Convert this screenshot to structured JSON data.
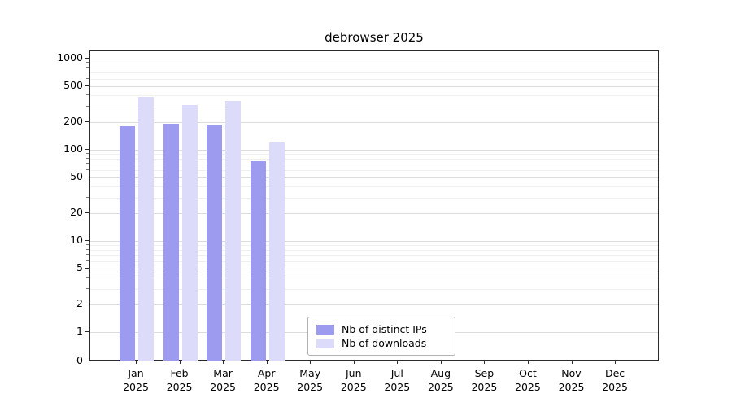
{
  "chart_data": {
    "type": "bar",
    "title": "debrowser 2025",
    "categories": [
      "Jan 2025",
      "Feb 2025",
      "Mar 2025",
      "Apr 2025",
      "May 2025",
      "Jun 2025",
      "Jul 2025",
      "Aug 2025",
      "Sep 2025",
      "Oct 2025",
      "Nov 2025",
      "Dec 2025"
    ],
    "series": [
      {
        "name": "Nb of distinct IPs",
        "color": "#9c9bef",
        "values": [
          180,
          195,
          190,
          75,
          null,
          null,
          null,
          null,
          null,
          null,
          null,
          null
        ]
      },
      {
        "name": "Nb of downloads",
        "color": "#dcdcfa",
        "values": [
          380,
          310,
          340,
          120,
          null,
          null,
          null,
          null,
          null,
          null,
          null,
          null
        ]
      }
    ],
    "yscale": "symlog",
    "yticks": [
      0,
      1,
      2,
      5,
      10,
      20,
      50,
      100,
      200,
      500,
      1000
    ],
    "ylim": [
      0,
      1200
    ],
    "grid": true,
    "legend_position": "lower center",
    "colors": {
      "distinct_ips": "#9c9bef",
      "downloads": "#dcdcfa",
      "grid_major": "#dcdcdc",
      "grid_minor": "#f0f0f0",
      "spine": "#2a2a2a"
    }
  }
}
